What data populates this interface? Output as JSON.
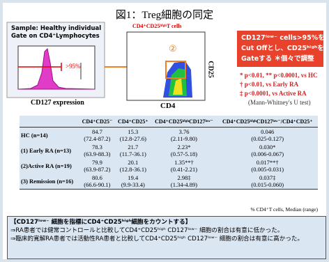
{
  "title": "図1：Treg細胞の同定",
  "left_panel": {
    "sample": "Sample: Healthy individual",
    "gate": "Gate on CD4⁺Lymphocytes",
    "gate_label": ">95%",
    "x_label": "CD127 expression"
  },
  "middle_panel": {
    "title": "CD4⁺CD25ʰⁱᵍʰT cells",
    "marker": "②",
    "y_label": "CD25",
    "x_label": "CD4"
  },
  "callout": [
    "CD127ˡᵒʷ⁻ cells>95%を",
    "Cut Offとし、CD25ʰⁱᵍʰを",
    "Gateする ＊個々で調整"
  ],
  "stats": [
    "* p<0.01, ** p<0.0001, vs HC",
    "† p<0.01, vs Early RA",
    "‡ p<0.0001, vs Active RA",
    "(Mann-Whitney's U test)"
  ],
  "table": {
    "header": [
      "CD4⁺CD25⁻",
      "CD4⁺CD25⁺",
      "CD4⁺CD25ʰⁱᵍʰCD127ˡᵒʷ⁻",
      "CD4⁺CD25ʰⁱᵍʰCD127ˡᵒʷ⁻/CD4⁺CD25⁺"
    ],
    "rows": [
      {
        "label": "HC (n=14)",
        "cells": [
          [
            "84.7",
            "(72.4-87.2)"
          ],
          [
            "15.3",
            "(12.8-27.6)"
          ],
          [
            "3.76",
            "(2.11-9.80)"
          ],
          [
            "0.046",
            "(0.025-0.127)"
          ]
        ]
      },
      {
        "label": "(1) Early RA (n=13)",
        "cells": [
          [
            "78.3",
            "(63.9-88.3)"
          ],
          [
            "21.7",
            "(11.7-36.1)"
          ],
          [
            "2.23*",
            "(0.57-5.18)"
          ],
          [
            "0.030*",
            "(0.006-0.067)"
          ]
        ]
      },
      {
        "label": "(2)Active RA (n=19)",
        "cells": [
          [
            "79.9",
            "(63.9-87.2)"
          ],
          [
            "20.1",
            "(12.8-36.1)"
          ],
          [
            "1.35**†",
            "(0.41-2.21)"
          ],
          [
            "0.017**†",
            "(0.005-0.031)"
          ]
        ]
      },
      {
        "label": "(3) Remission (n=16)",
        "cells": [
          [
            "80.6",
            "(66.6-90.1)"
          ],
          [
            "19.4",
            "(9.9-33.4)"
          ],
          [
            "2.98‡",
            "(1.34-4.89)"
          ],
          [
            "0.037‡",
            "(0.015-0.060)"
          ]
        ]
      }
    ],
    "footnote": "% CD4⁺T cells, Median (range)"
  },
  "summary": {
    "heading": "【CD127ˡᵒʷ⁻ 細胞を指標にCD4⁺CD25ʰⁱᵍʰ細胞をカウントする】",
    "points": [
      "⇒RA患者では健常コントロールと比較してCD4⁺CD25ʰⁱᵍʰ CD127ˡᵒʷ⁻ 細胞の割合は有意に低かった。",
      "⇒臨床的寛解RA患者では活動性RA患者と比較してCD4⁺CD25ʰⁱᵍʰ CD127ˡᵒʷ⁻ 細胞の割合は有意に高かった。"
    ]
  }
}
